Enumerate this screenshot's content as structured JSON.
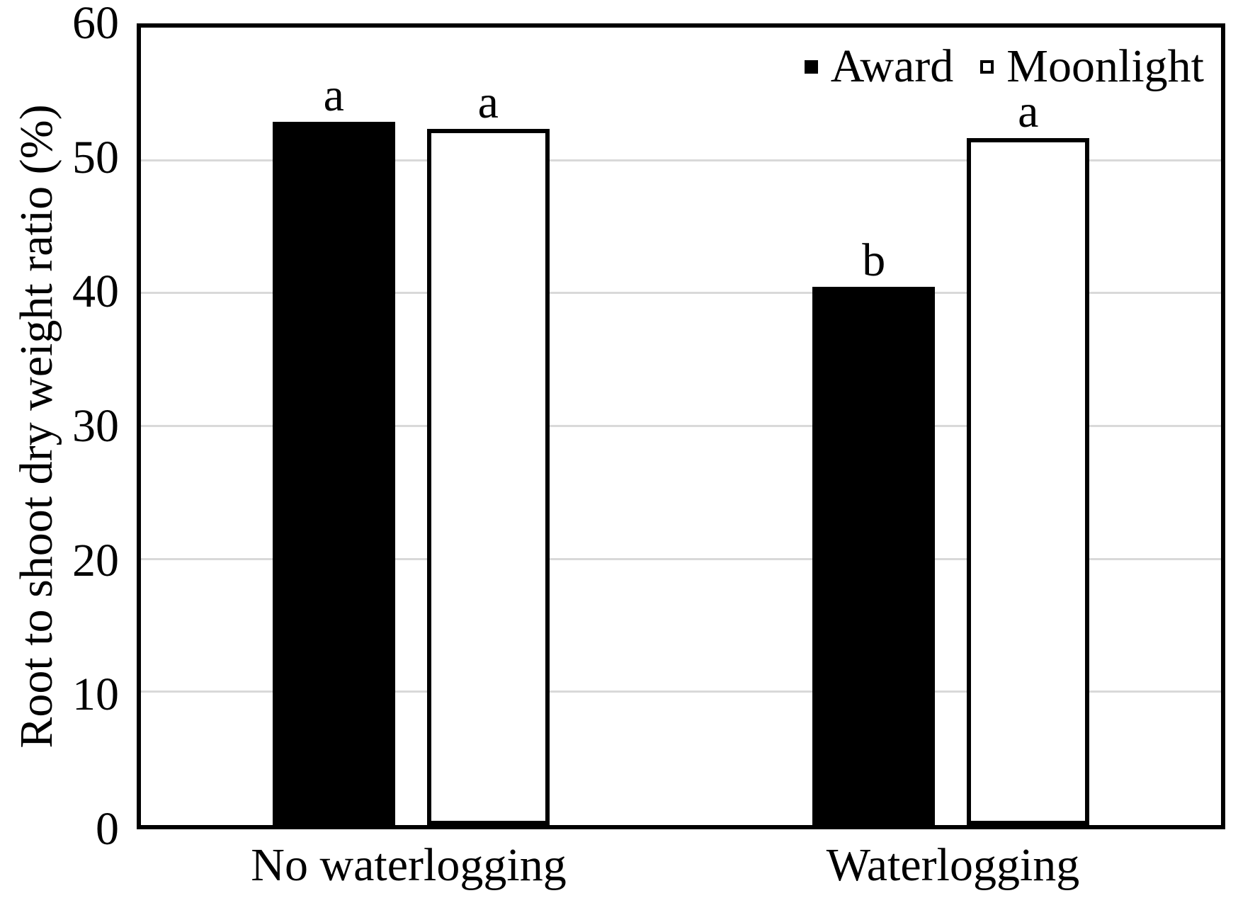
{
  "chart_data": {
    "type": "bar",
    "categories": [
      "No waterlogging",
      "Waterlogging"
    ],
    "series": [
      {
        "name": "Award",
        "style": "filled",
        "fill": "#000000",
        "values": [
          52.9,
          40.5
        ],
        "significance_labels": [
          "a",
          "b"
        ]
      },
      {
        "name": "Moonlight",
        "style": "hollow",
        "fill": "#ffffff",
        "values": [
          52.4,
          51.7
        ],
        "significance_labels": [
          "a",
          "a"
        ]
      }
    ],
    "ylabel": "Root to shoot dry weight ratio (%)",
    "xlabel": "",
    "ylim": [
      0,
      60
    ],
    "yticks": [
      0,
      10,
      20,
      30,
      40,
      50,
      60
    ],
    "grid": "horizontal gridlines at 10,20,30,40,50",
    "legend_position": "top-right inside plot"
  },
  "colors": {
    "background": "#ffffff",
    "text": "#000000",
    "axis_border": "#000000",
    "gridline": "#d9d9d9",
    "bar_award": "#000000",
    "bar_moonlight_fill": "#ffffff",
    "bar_moonlight_border": "#000000"
  }
}
